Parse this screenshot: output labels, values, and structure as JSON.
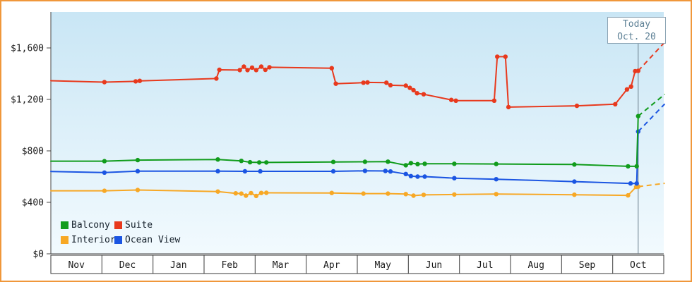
{
  "frame": {
    "border_color": "#f0973a",
    "background": "#ffffff"
  },
  "chart_data": {
    "type": "line",
    "bg_top": "#c9e6f5",
    "bg_bottom": "#f2fafe",
    "months": [
      "Nov",
      "Dec",
      "Jan",
      "Feb",
      "Mar",
      "Apr",
      "May",
      "Jun",
      "Jul",
      "Aug",
      "Sep",
      "Oct"
    ],
    "y_ticks": [
      {
        "value": 0,
        "label": "$0"
      },
      {
        "value": 400,
        "label": "$400"
      },
      {
        "value": 800,
        "label": "$800"
      },
      {
        "value": 1200,
        "label": "$1,200"
      },
      {
        "value": 1600,
        "label": "$1,600"
      }
    ],
    "ylim": [
      0,
      1880
    ],
    "x_range_months": [
      0,
      12
    ],
    "legend_position": "bottom-left",
    "today": {
      "line1": "Today",
      "line2": "Oct. 20",
      "month_coord": 11.5
    },
    "series": [
      {
        "name": "Balcony",
        "color": "#119c1c",
        "points": [
          [
            0,
            720
          ],
          [
            1.05,
            720
          ],
          [
            1.7,
            728
          ],
          [
            3.27,
            733
          ],
          [
            3.73,
            722
          ],
          [
            3.9,
            712
          ],
          [
            4.08,
            710
          ],
          [
            4.22,
            710
          ],
          [
            5.53,
            714
          ],
          [
            6.15,
            715
          ],
          [
            6.6,
            716
          ],
          [
            6.95,
            688
          ],
          [
            7.05,
            705
          ],
          [
            7.18,
            697
          ],
          [
            7.32,
            700
          ],
          [
            7.9,
            700
          ],
          [
            8.72,
            698
          ],
          [
            10.25,
            694
          ],
          [
            11.3,
            680
          ],
          [
            11.47,
            680
          ],
          [
            11.5,
            1070
          ]
        ],
        "projection": [
          [
            11.5,
            1070
          ],
          [
            12.02,
            1240
          ]
        ]
      },
      {
        "name": "Suite",
        "color": "#e8391d",
        "points": [
          [
            0,
            1345
          ],
          [
            1.05,
            1334
          ],
          [
            1.66,
            1340
          ],
          [
            1.74,
            1344
          ],
          [
            3.24,
            1362
          ],
          [
            3.3,
            1430
          ],
          [
            3.7,
            1428
          ],
          [
            3.78,
            1455
          ],
          [
            3.85,
            1428
          ],
          [
            3.94,
            1447
          ],
          [
            4.02,
            1428
          ],
          [
            4.12,
            1455
          ],
          [
            4.2,
            1430
          ],
          [
            4.28,
            1450
          ],
          [
            5.5,
            1443
          ],
          [
            5.58,
            1322
          ],
          [
            6.12,
            1330
          ],
          [
            6.2,
            1332
          ],
          [
            6.57,
            1330
          ],
          [
            6.65,
            1310
          ],
          [
            6.95,
            1307
          ],
          [
            7.03,
            1290
          ],
          [
            7.1,
            1272
          ],
          [
            7.17,
            1248
          ],
          [
            7.3,
            1240
          ],
          [
            7.84,
            1196
          ],
          [
            7.93,
            1190
          ],
          [
            8.68,
            1190
          ],
          [
            8.74,
            1532
          ],
          [
            8.9,
            1532
          ],
          [
            8.96,
            1140
          ],
          [
            10.3,
            1150
          ],
          [
            11.05,
            1163
          ],
          [
            11.28,
            1278
          ],
          [
            11.36,
            1300
          ],
          [
            11.44,
            1420
          ],
          [
            11.5,
            1422
          ]
        ],
        "projection": [
          [
            11.5,
            1422
          ],
          [
            12.02,
            1645
          ]
        ]
      },
      {
        "name": "Interior",
        "color": "#f7a825",
        "points": [
          [
            0,
            490
          ],
          [
            1.05,
            490
          ],
          [
            1.7,
            496
          ],
          [
            3.27,
            484
          ],
          [
            3.62,
            470
          ],
          [
            3.73,
            468
          ],
          [
            3.82,
            452
          ],
          [
            3.92,
            472
          ],
          [
            4.02,
            450
          ],
          [
            4.12,
            473
          ],
          [
            4.22,
            474
          ],
          [
            5.5,
            473
          ],
          [
            6.12,
            468
          ],
          [
            6.6,
            468
          ],
          [
            6.95,
            464
          ],
          [
            7.1,
            452
          ],
          [
            7.3,
            458
          ],
          [
            7.9,
            461
          ],
          [
            8.72,
            464
          ],
          [
            10.25,
            459
          ],
          [
            11.3,
            454
          ],
          [
            11.46,
            520
          ],
          [
            11.5,
            522
          ]
        ],
        "projection": [
          [
            11.5,
            522
          ],
          [
            12.02,
            548
          ]
        ]
      },
      {
        "name": "Ocean View",
        "color": "#1b55e2",
        "points": [
          [
            0,
            640
          ],
          [
            1.05,
            631
          ],
          [
            1.7,
            642
          ],
          [
            3.27,
            642
          ],
          [
            3.8,
            641
          ],
          [
            4.1,
            641
          ],
          [
            5.53,
            641
          ],
          [
            6.15,
            645
          ],
          [
            6.55,
            644
          ],
          [
            6.65,
            640
          ],
          [
            6.95,
            620
          ],
          [
            7.05,
            604
          ],
          [
            7.18,
            600
          ],
          [
            7.32,
            600
          ],
          [
            7.9,
            588
          ],
          [
            8.72,
            580
          ],
          [
            10.25,
            561
          ],
          [
            11.35,
            547
          ],
          [
            11.47,
            547
          ],
          [
            11.5,
            950
          ]
        ],
        "projection": [
          [
            11.5,
            950
          ],
          [
            12.02,
            1165
          ]
        ]
      }
    ]
  }
}
